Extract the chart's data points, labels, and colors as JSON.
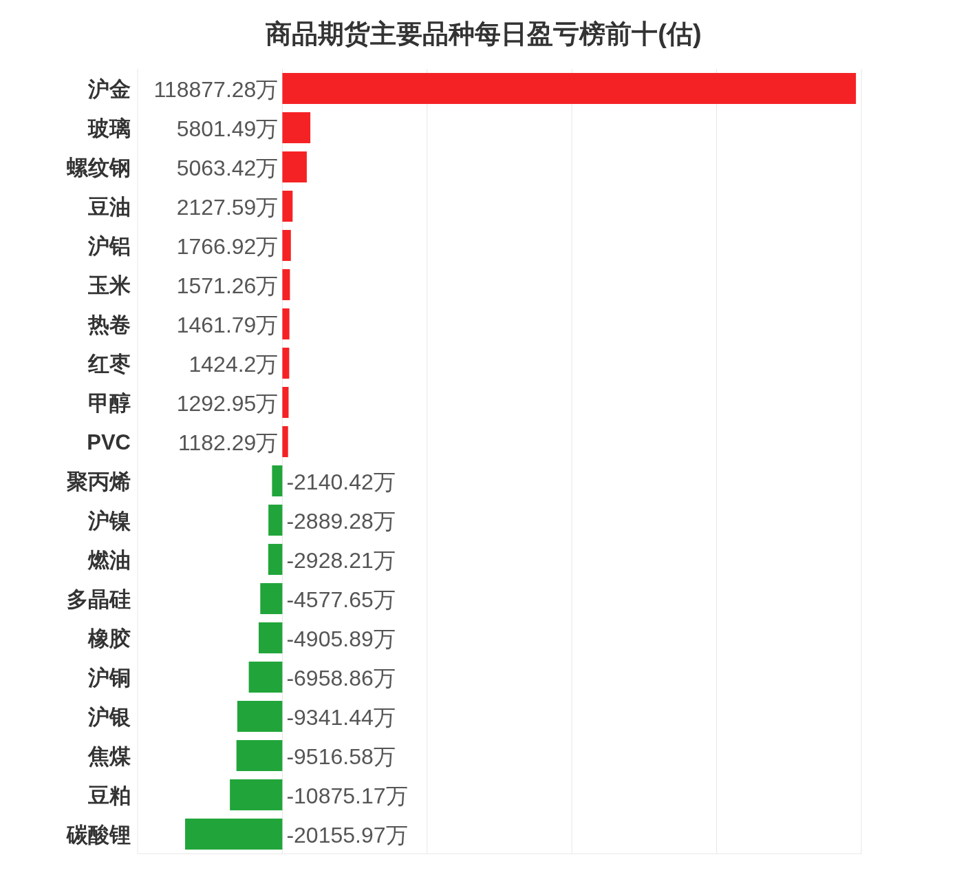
{
  "chart_data": {
    "type": "bar",
    "orientation": "horizontal",
    "title": "商品期货主要品种每日盈亏榜前十(估)",
    "categories": [
      "沪金",
      "玻璃",
      "螺纹钢",
      "豆油",
      "沪铝",
      "玉米",
      "热卷",
      "红枣",
      "甲醇",
      "PVC",
      "聚丙烯",
      "沪镍",
      "燃油",
      "多晶硅",
      "橡胶",
      "沪铜",
      "沪银",
      "焦煤",
      "豆粕",
      "碳酸锂"
    ],
    "values": [
      118877.28,
      5801.49,
      5063.42,
      2127.59,
      1766.92,
      1571.26,
      1461.79,
      1424.2,
      1292.95,
      1182.29,
      -2140.42,
      -2889.28,
      -2928.21,
      -4577.65,
      -4905.89,
      -6958.86,
      -9341.44,
      -9516.58,
      -10875.17,
      -20155.97
    ],
    "value_labels": [
      "118877.28万",
      "5801.49万",
      "5063.42万",
      "2127.59万",
      "1766.92万",
      "1571.26万",
      "1461.79万",
      "1424.2万",
      "1292.95万",
      "1182.29万",
      "-2140.42万",
      "-2889.28万",
      "-2928.21万",
      "-4577.65万",
      "-4905.89万",
      "-6958.86万",
      "-9341.44万",
      "-9516.58万",
      "-10875.17万",
      "-20155.97万"
    ],
    "colors": [
      "#f52225",
      "#f52225",
      "#f52225",
      "#f52225",
      "#f52225",
      "#f52225",
      "#f52225",
      "#f52225",
      "#f52225",
      "#f52225",
      "#21a53a",
      "#21a53a",
      "#21a53a",
      "#21a53a",
      "#21a53a",
      "#21a53a",
      "#21a53a",
      "#21a53a",
      "#21a53a",
      "#21a53a"
    ],
    "xlim": [
      -30000,
      120000
    ],
    "xticks": [
      {
        "value": -30000,
        "label": null
      },
      {
        "value": 0,
        "label": null
      },
      {
        "value": 30000,
        "label": null
      },
      {
        "value": 60000,
        "label": null
      },
      {
        "value": 90000,
        "label": null
      },
      {
        "value": 120000,
        "label": null
      }
    ],
    "grid": "x",
    "tick_labels": "y"
  }
}
